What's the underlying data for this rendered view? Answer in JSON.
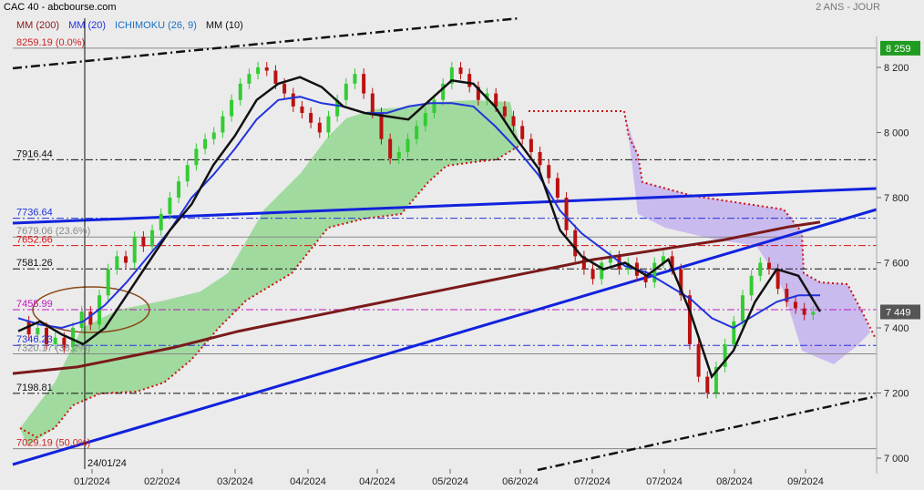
{
  "header": {
    "title": "CAC 40 - abcbourse.com",
    "period": "2 ANS - JOUR",
    "indicators": [
      {
        "label": "MM (200)",
        "color": "#8b1a1a"
      },
      {
        "label": "MM (20)",
        "color": "#2233dd"
      },
      {
        "label": "ICHIMOKU (26, 9)",
        "color": "#1a6fc4"
      },
      {
        "label": "MM (10)",
        "color": "#111111"
      }
    ]
  },
  "chart_data": {
    "type": "line",
    "title": "CAC 40",
    "ylim": [
      6950,
      8290
    ],
    "y_ticks": [
      "7 000",
      "7 200",
      "7 400",
      "7 600",
      "7 800",
      "8 000",
      "8 200"
    ],
    "x_ticks": [
      "01/2024",
      "02/2024",
      "03/2024",
      "04/2024",
      "04/2024",
      "05/2024",
      "06/2024",
      "07/2024",
      "07/2024",
      "08/2024",
      "09/2024"
    ],
    "cursor_date": "24/01/24",
    "last_value_tag": "7 449",
    "top_value_tag": "8 259",
    "levels": [
      {
        "label": "8259.19 (0.0%)",
        "value": 8259.19,
        "color": "#888888",
        "label_color": "#cc2222",
        "style": "solid"
      },
      {
        "label": "7916.44",
        "value": 7916.44,
        "color": "#111111",
        "label_color": "#111111",
        "style": "dashdot"
      },
      {
        "label": "7736.64",
        "value": 7736.64,
        "color": "#2233dd",
        "label_color": "#2233dd",
        "style": "dashdot"
      },
      {
        "label": "7679.06 (23.6%)",
        "value": 7679.06,
        "color": "#888888",
        "label_color": "#888888",
        "style": "solid"
      },
      {
        "label": "7652.66",
        "value": 7652.66,
        "color": "#dd1111",
        "label_color": "#dd1111",
        "style": "dashdot"
      },
      {
        "label": "7581.26",
        "value": 7581.26,
        "color": "#111111",
        "label_color": "#111111",
        "style": "dashdot"
      },
      {
        "label": "7455.99",
        "value": 7455.99,
        "color": "#c017c0",
        "label_color": "#c017c0",
        "style": "dashdot"
      },
      {
        "label": "7346.23",
        "value": 7346.23,
        "color": "#2233dd",
        "label_color": "#2233dd",
        "style": "dashdot"
      },
      {
        "label": "7320.17 (38.2%)",
        "value": 7320.17,
        "color": "#888888",
        "label_color": "#888888",
        "style": "solid"
      },
      {
        "label": "7198.81",
        "value": 7198.81,
        "color": "#111111",
        "label_color": "#111111",
        "style": "dashdot"
      },
      {
        "label": "7029.19 (50.0%)",
        "value": 7029.19,
        "color": "#888888",
        "label_color": "#cc2222",
        "style": "solid"
      }
    ],
    "ma10": [
      7390,
      7420,
      7380,
      7350,
      7400,
      7500,
      7600,
      7700,
      7780,
      7900,
      7990,
      8100,
      8150,
      8170,
      8140,
      8080,
      8060,
      8050,
      8040,
      8100,
      8160,
      8150,
      8080,
      7980,
      7890,
      7700,
      7620,
      7580,
      7600,
      7560,
      7610,
      7450,
      7250,
      7330,
      7480,
      7580,
      7560,
      7450
    ],
    "ma20": [
      7430,
      7410,
      7400,
      7420,
      7470,
      7540,
      7620,
      7700,
      7800,
      7870,
      7950,
      8040,
      8100,
      8110,
      8090,
      8080,
      8060,
      8060,
      8080,
      8090,
      8090,
      8080,
      8020,
      7950,
      7870,
      7760,
      7690,
      7640,
      7590,
      7570,
      7530,
      7490,
      7430,
      7400,
      7440,
      7480,
      7500,
      7500
    ],
    "ma200": [
      7260,
      7270,
      7280,
      7300,
      7320,
      7340,
      7365,
      7390,
      7410,
      7430,
      7450,
      7470,
      7490,
      7510,
      7530,
      7550,
      7570,
      7590,
      7610,
      7625,
      7640,
      7655,
      7670,
      7690,
      7710,
      7725
    ]
  }
}
